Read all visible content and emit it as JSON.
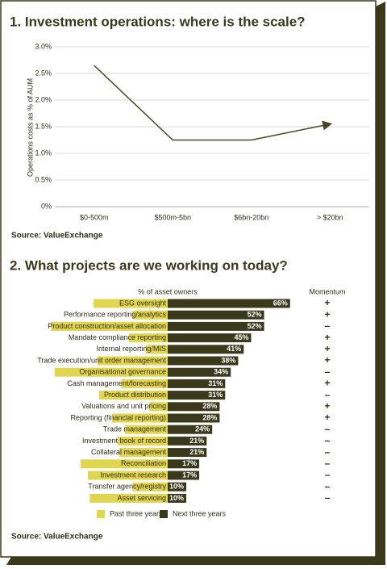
{
  "chart_data": [
    {
      "type": "line",
      "title": "1. Investment operations: where is the scale?",
      "y_label": "Operations costs as % of AUM",
      "categories": [
        "$0-500m",
        "$500m-5bn",
        "$6bn-20bn",
        "> $20bn"
      ],
      "values": [
        2.65,
        1.25,
        1.25,
        1.55
      ],
      "color": "#4a4720",
      "ylim": [
        0,
        3.0
      ],
      "yticks": [
        {
          "value": 0,
          "label": "0%"
        },
        {
          "value": 0.5,
          "label": "0.5%"
        },
        {
          "value": 1.0,
          "label": "1.0%"
        },
        {
          "value": 1.5,
          "label": "1.5%"
        },
        {
          "value": 2.0,
          "label": "2.0%"
        },
        {
          "value": 2.5,
          "label": "2.5%"
        },
        {
          "value": 3.0,
          "label": "3.0%"
        }
      ],
      "grid": true,
      "source": "Source: ValueExchange"
    },
    {
      "type": "hbar",
      "title": "2. What projects are we working on today?",
      "value_header": "% of asset owners",
      "momentum_header": "Momentum",
      "categories": [
        "ESG oversight",
        "Performance reporting/analytics",
        "Product construction/asset allocation",
        "Mandate compliance reporting",
        "Internal reporting/MIS",
        "Trade execution/unit order management",
        "Organisational governance",
        "Cash management/forecasting",
        "Product distribution",
        "Valuations and unit pricing",
        "Reporting (financial reporting)",
        "Trade management",
        "Investment book of record",
        "Collateral management",
        "Reconciliation",
        "Investment research",
        "Transfer agency/registry",
        "Asset servicing"
      ],
      "series": [
        {
          "name": "Past three years",
          "color": "#e2d54f",
          "values": [
            40,
            19,
            63,
            21,
            12,
            38,
            61,
            25,
            37,
            10,
            30,
            23,
            27,
            26,
            47,
            43,
            19,
            42
          ]
        },
        {
          "name": "Next three years",
          "color": "#3b391c",
          "values": [
            66,
            52,
            52,
            45,
            41,
            38,
            34,
            31,
            31,
            28,
            28,
            24,
            21,
            21,
            17,
            17,
            10,
            10
          ],
          "value_labels": [
            "66%",
            "52%",
            "52%",
            "45%",
            "41%",
            "38%",
            "34%",
            "31%",
            "31%",
            "28%",
            "28%",
            "24%",
            "21%",
            "21%",
            "17%",
            "17%",
            "10%",
            "10%"
          ]
        }
      ],
      "momentum": [
        "+",
        "+",
        "–",
        "+",
        "+",
        "+",
        "–",
        "+",
        "–",
        "+",
        "+",
        "–",
        "–",
        "–",
        "–",
        "–",
        "–",
        "–"
      ],
      "source": "Source: ValueExchange"
    }
  ]
}
